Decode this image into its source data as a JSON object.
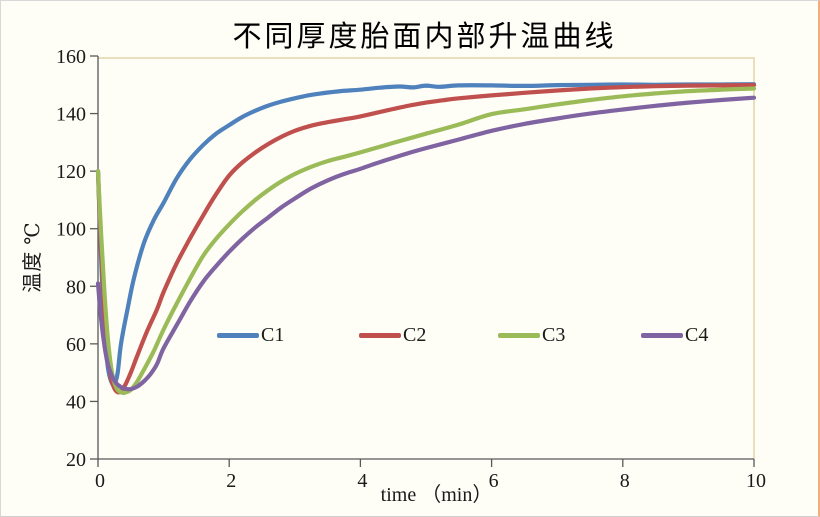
{
  "window": {
    "background": "#fefef6",
    "edge_color": "#f0ae7e"
  },
  "chart_data": {
    "type": "line",
    "title": "不同厚度胎面内部升温曲线",
    "xlabel": "time （min）",
    "ylabel": "温度 ℃",
    "xlim": [
      0,
      10
    ],
    "ylim": [
      20,
      160
    ],
    "x_ticks": [
      0,
      2,
      4,
      6,
      8,
      10
    ],
    "y_ticks": [
      20,
      40,
      60,
      80,
      100,
      120,
      140,
      160
    ],
    "grid": false,
    "legend_position": "inside-center",
    "axis_color": "#595959",
    "tick_text_color": "#1a1a1a",
    "plot_border_color": "#e2d3ac",
    "series": [
      {
        "name": "C1",
        "color": "#4F81BD",
        "points": [
          [
            0,
            120
          ],
          [
            0.05,
            88
          ],
          [
            0.1,
            64
          ],
          [
            0.15,
            52
          ],
          [
            0.2,
            47
          ],
          [
            0.25,
            46
          ],
          [
            0.3,
            50
          ],
          [
            0.35,
            60
          ],
          [
            0.45,
            72
          ],
          [
            0.55,
            83
          ],
          [
            0.7,
            95
          ],
          [
            0.85,
            103
          ],
          [
            1,
            109
          ],
          [
            1.2,
            117.5
          ],
          [
            1.4,
            124
          ],
          [
            1.6,
            129
          ],
          [
            1.8,
            133
          ],
          [
            2,
            136
          ],
          [
            2.2,
            138.8
          ],
          [
            2.4,
            141
          ],
          [
            2.6,
            142.8
          ],
          [
            2.8,
            144.2
          ],
          [
            3,
            145.3
          ],
          [
            3.2,
            146.3
          ],
          [
            3.4,
            147
          ],
          [
            3.7,
            147.8
          ],
          [
            4,
            148.3
          ],
          [
            4.3,
            149
          ],
          [
            4.6,
            149.4
          ],
          [
            4.8,
            149.1
          ],
          [
            5,
            149.7
          ],
          [
            5.2,
            149.3
          ],
          [
            5.5,
            149.8
          ],
          [
            6,
            149.8
          ],
          [
            6.5,
            149.6
          ],
          [
            7,
            149.9
          ],
          [
            7.5,
            150
          ],
          [
            8,
            150.1
          ],
          [
            8.5,
            150
          ],
          [
            9,
            150.1
          ],
          [
            9.5,
            150.1
          ],
          [
            10,
            150.2
          ]
        ]
      },
      {
        "name": "C2",
        "color": "#C0504D",
        "points": [
          [
            0,
            120
          ],
          [
            0.05,
            92
          ],
          [
            0.1,
            70
          ],
          [
            0.15,
            56
          ],
          [
            0.2,
            48
          ],
          [
            0.25,
            44.5
          ],
          [
            0.3,
            43.2
          ],
          [
            0.35,
            43.5
          ],
          [
            0.4,
            45
          ],
          [
            0.5,
            50
          ],
          [
            0.6,
            56
          ],
          [
            0.75,
            64.5
          ],
          [
            0.9,
            72
          ],
          [
            1,
            78
          ],
          [
            1.2,
            88
          ],
          [
            1.4,
            96.5
          ],
          [
            1.6,
            104.5
          ],
          [
            1.8,
            112
          ],
          [
            2,
            118.5
          ],
          [
            2.2,
            123
          ],
          [
            2.4,
            126.5
          ],
          [
            2.6,
            129.5
          ],
          [
            2.8,
            132
          ],
          [
            3,
            134
          ],
          [
            3.25,
            135.8
          ],
          [
            3.5,
            137
          ],
          [
            3.75,
            138
          ],
          [
            4,
            139
          ],
          [
            4.25,
            140.3
          ],
          [
            4.5,
            141.6
          ],
          [
            4.75,
            142.8
          ],
          [
            5,
            143.8
          ],
          [
            5.25,
            144.6
          ],
          [
            5.5,
            145.3
          ],
          [
            6,
            146.3
          ],
          [
            6.5,
            147.2
          ],
          [
            7,
            148
          ],
          [
            7.5,
            148.7
          ],
          [
            8,
            149.2
          ],
          [
            8.5,
            149.5
          ],
          [
            9,
            149.7
          ],
          [
            9.5,
            149.8
          ],
          [
            10,
            149.9
          ]
        ]
      },
      {
        "name": "C3",
        "color": "#9BBB59",
        "points": [
          [
            0,
            120
          ],
          [
            0.05,
            97
          ],
          [
            0.1,
            77
          ],
          [
            0.15,
            62
          ],
          [
            0.2,
            52
          ],
          [
            0.25,
            46.5
          ],
          [
            0.3,
            44
          ],
          [
            0.35,
            43.2
          ],
          [
            0.4,
            43
          ],
          [
            0.5,
            44
          ],
          [
            0.6,
            47
          ],
          [
            0.7,
            51
          ],
          [
            0.85,
            57.5
          ],
          [
            1,
            65
          ],
          [
            1.2,
            74
          ],
          [
            1.4,
            82.5
          ],
          [
            1.6,
            90.5
          ],
          [
            1.8,
            96.5
          ],
          [
            2,
            101.5
          ],
          [
            2.2,
            106
          ],
          [
            2.4,
            110
          ],
          [
            2.6,
            113.5
          ],
          [
            2.8,
            116.5
          ],
          [
            3,
            119
          ],
          [
            3.25,
            121.5
          ],
          [
            3.5,
            123.5
          ],
          [
            3.75,
            125
          ],
          [
            4,
            126.5
          ],
          [
            4.5,
            129.8
          ],
          [
            5,
            133
          ],
          [
            5.5,
            136.2
          ],
          [
            6,
            139.8
          ],
          [
            6.5,
            141.5
          ],
          [
            7,
            143.2
          ],
          [
            7.5,
            144.7
          ],
          [
            8,
            146
          ],
          [
            8.5,
            147
          ],
          [
            9,
            147.8
          ],
          [
            9.5,
            148.3
          ],
          [
            10,
            148.7
          ]
        ]
      },
      {
        "name": "C4",
        "color": "#8064A2",
        "points": [
          [
            0,
            81
          ],
          [
            0.05,
            68
          ],
          [
            0.1,
            59
          ],
          [
            0.15,
            53
          ],
          [
            0.2,
            49.5
          ],
          [
            0.25,
            47.2
          ],
          [
            0.3,
            45.8
          ],
          [
            0.4,
            44.5
          ],
          [
            0.5,
            44.3
          ],
          [
            0.6,
            45.2
          ],
          [
            0.7,
            47
          ],
          [
            0.8,
            49.5
          ],
          [
            0.9,
            53
          ],
          [
            1,
            58.5
          ],
          [
            1.2,
            66.5
          ],
          [
            1.4,
            74.5
          ],
          [
            1.6,
            81.5
          ],
          [
            1.8,
            87
          ],
          [
            2,
            92
          ],
          [
            2.2,
            96.5
          ],
          [
            2.4,
            100.5
          ],
          [
            2.6,
            104
          ],
          [
            2.8,
            107.5
          ],
          [
            3,
            110.5
          ],
          [
            3.25,
            114
          ],
          [
            3.5,
            116.8
          ],
          [
            3.75,
            119
          ],
          [
            4,
            120.8
          ],
          [
            4.25,
            122.8
          ],
          [
            4.5,
            124.6
          ],
          [
            4.75,
            126.4
          ],
          [
            5,
            128
          ],
          [
            5.5,
            131
          ],
          [
            6,
            134
          ],
          [
            6.5,
            136.4
          ],
          [
            7,
            138.3
          ],
          [
            7.5,
            140
          ],
          [
            8,
            141.4
          ],
          [
            8.5,
            142.7
          ],
          [
            9,
            143.8
          ],
          [
            9.5,
            144.7
          ],
          [
            10,
            145.5
          ]
        ]
      }
    ]
  }
}
